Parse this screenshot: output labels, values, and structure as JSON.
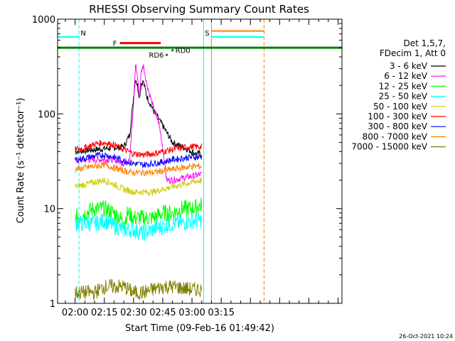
{
  "chart_data": {
    "type": "line",
    "title": "RHESSI Observing Summary Count Rates",
    "xlabel": "Start Time (09-Feb-16 01:49:42)",
    "ylabel": "Count Rate (s⁻¹ detector⁻¹)",
    "yscale": "log",
    "ylim": [
      1,
      1000
    ],
    "xlim_minutes": [
      111,
      257
    ],
    "x_ticks": [
      {
        "label": "02:00",
        "min": 120
      },
      {
        "label": "02:15",
        "min": 135
      },
      {
        "label": "02:30",
        "min": 150
      },
      {
        "label": "02:45",
        "min": 165
      },
      {
        "label": "03:00",
        "min": 180
      },
      {
        "label": "03:15",
        "min": 195
      }
    ],
    "y_ticks": [
      {
        "label": "1",
        "v": 1
      },
      {
        "label": "10",
        "v": 10
      },
      {
        "label": "100",
        "v": 100
      },
      {
        "label": "1000",
        "v": 1000
      }
    ],
    "legend": {
      "header": [
        "Det 1,5,7,",
        "FDecim 1, Att 0"
      ],
      "placement": "right"
    },
    "series": [
      {
        "name": "3 - 6 keV",
        "color": "#000000",
        "x": [
          120,
          130,
          140,
          145,
          148,
          150,
          151,
          152,
          153,
          154,
          155,
          157,
          160,
          165,
          170,
          175,
          178,
          180,
          182,
          185
        ],
        "y": [
          40,
          42,
          44,
          45,
          60,
          150,
          240,
          200,
          150,
          210,
          220,
          150,
          110,
          75,
          50,
          45,
          42,
          40,
          38,
          38
        ]
      },
      {
        "name": "6 - 12 keV",
        "color": "#ff00ff",
        "x": [
          120,
          130,
          140,
          145,
          148,
          150,
          151,
          152,
          153,
          154,
          155,
          157,
          160,
          163,
          165,
          167,
          170,
          175,
          180,
          185
        ],
        "y": [
          32,
          33,
          33,
          30,
          35,
          120,
          340,
          250,
          150,
          280,
          330,
          200,
          120,
          80,
          45,
          20,
          20,
          21,
          22,
          23
        ]
      },
      {
        "name": "12 - 25 keV",
        "color": "#00ff00",
        "x": [
          120,
          125,
          130,
          135,
          140,
          143,
          145,
          147,
          150,
          155,
          160,
          165,
          170,
          175,
          180,
          185
        ],
        "y": [
          8,
          9,
          10,
          10,
          9,
          8,
          7,
          9,
          8,
          8,
          8,
          9,
          9,
          10,
          10,
          11
        ]
      },
      {
        "name": "25 - 50 keV",
        "color": "#00ffff",
        "x": [
          120,
          125,
          130,
          135,
          140,
          145,
          150,
          155,
          160,
          165,
          170,
          175,
          180,
          185
        ],
        "y": [
          7,
          7,
          7,
          7.5,
          6.5,
          6,
          6,
          5.5,
          6,
          6.5,
          7,
          7,
          7.5,
          7.5
        ]
      },
      {
        "name": "50 - 100 keV",
        "color": "#cccc00",
        "x": [
          120,
          125,
          130,
          135,
          140,
          145,
          150,
          155,
          160,
          165,
          170,
          175,
          180,
          185
        ],
        "y": [
          17,
          18,
          19,
          20,
          18,
          16,
          15,
          15,
          15,
          16,
          17,
          18,
          19,
          20
        ]
      },
      {
        "name": "100 - 300 keV",
        "color": "#ff0000",
        "x": [
          120,
          125,
          130,
          135,
          140,
          145,
          150,
          155,
          160,
          165,
          170,
          175,
          180,
          185
        ],
        "y": [
          42,
          44,
          48,
          50,
          47,
          42,
          38,
          37,
          38,
          40,
          42,
          44,
          45,
          45
        ]
      },
      {
        "name": "300 - 800 keV",
        "color": "#0000ff",
        "x": [
          120,
          125,
          130,
          135,
          140,
          145,
          150,
          155,
          160,
          165,
          170,
          175,
          180,
          185
        ],
        "y": [
          33,
          34,
          36,
          37,
          35,
          32,
          30,
          29,
          30,
          31,
          33,
          34,
          35,
          35
        ]
      },
      {
        "name": "800 - 7000 keV",
        "color": "#ff8000",
        "x": [
          120,
          125,
          130,
          135,
          140,
          145,
          150,
          155,
          160,
          165,
          170,
          175,
          180,
          185
        ],
        "y": [
          26,
          27,
          28,
          29,
          27,
          25,
          24,
          24,
          24,
          25,
          26,
          27,
          28,
          28
        ]
      },
      {
        "name": "7000 - 15000 keV",
        "color": "#808000",
        "x": [
          120,
          130,
          135,
          145,
          150,
          155,
          165,
          170,
          180,
          185
        ],
        "y": [
          1.3,
          1.3,
          1.5,
          1.5,
          1.3,
          1.3,
          1.5,
          1.5,
          1.4,
          1.4
        ]
      }
    ],
    "flag_bars": [
      {
        "label": "F",
        "color": "#ff0000",
        "x_start": 143,
        "x_end": 164,
        "y": 560
      },
      {
        "label": "",
        "color": "#008000",
        "x_start": 111,
        "x_end": 257,
        "y": 500
      }
    ],
    "markers": [
      {
        "label": "RD0",
        "color": "#008000",
        "x": 170,
        "y": 470
      },
      {
        "label": "RD6",
        "color": "#008000",
        "x": 167,
        "y": 420
      }
    ],
    "vertical_lines": [
      {
        "x": 122,
        "label": "N",
        "color": "#00ffff",
        "dashed": true
      },
      {
        "x": 186,
        "label": "",
        "color": "#00ffff",
        "dashed": false
      },
      {
        "x": 190,
        "label": "S",
        "color": "#ff8000",
        "dashed": false
      },
      {
        "x": 217,
        "label": "",
        "color": "#ff8000",
        "dashed": true
      }
    ],
    "attenuator_levels": [
      {
        "x_start": 111,
        "x_end": 122,
        "y": 650,
        "color": "#00ffff"
      },
      {
        "x_start": 190,
        "x_end": 217,
        "y": 650,
        "color": "#00ffff"
      },
      {
        "x_start": 190,
        "x_end": 217,
        "y": 750,
        "color": "#ff8000"
      }
    ]
  },
  "footer_timestamp": "26-Oct-2021 10:24"
}
